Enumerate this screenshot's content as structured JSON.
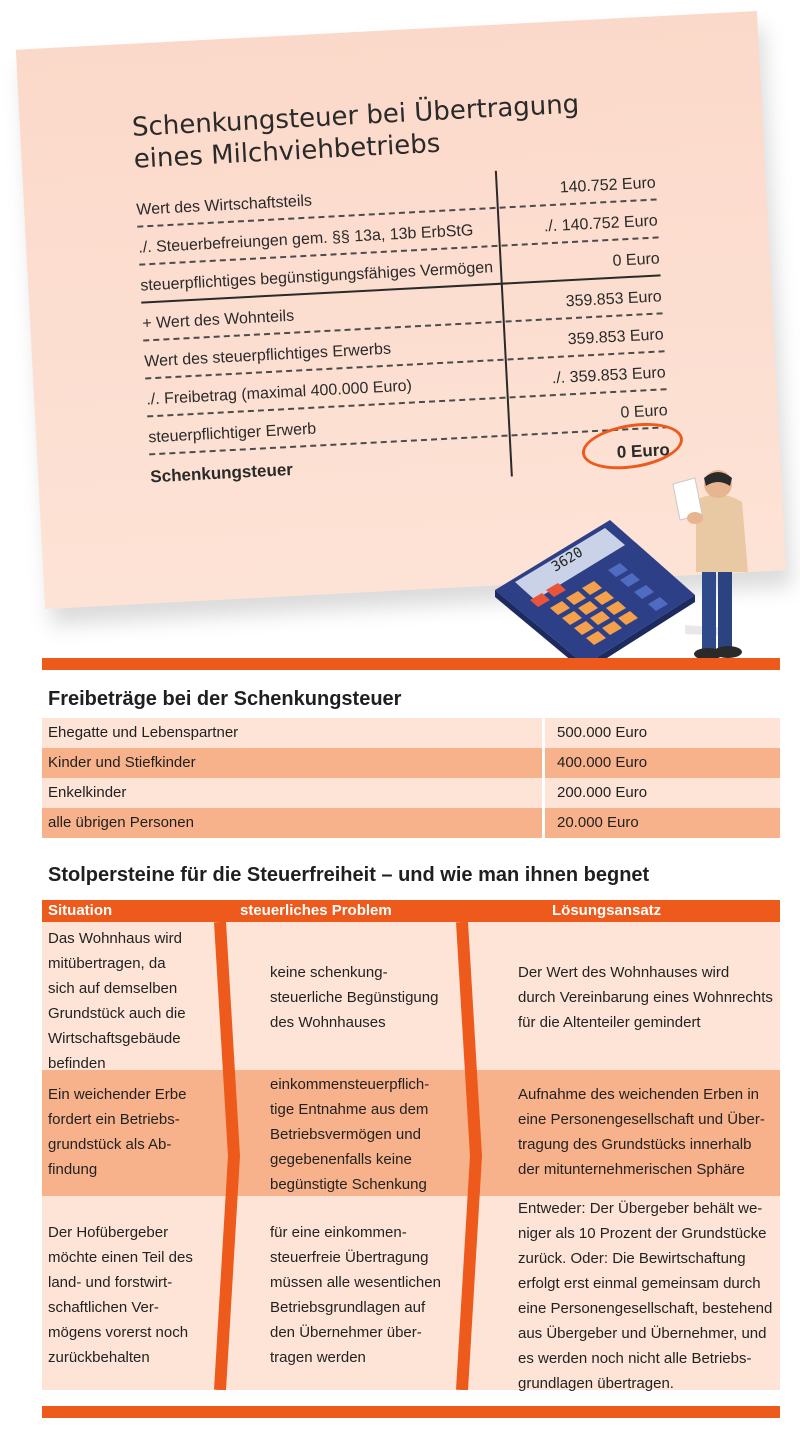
{
  "note": {
    "title_line1": "Schenkungsteuer bei Übertragung",
    "title_line2": "eines Milchviehbetriebs",
    "rows": [
      {
        "label": "Wert des Wirtschaftsteils",
        "value": "140.752 Euro"
      },
      {
        "label": "./. Steuerbefreiungen gem. §§ 13a, 13b ErbStG",
        "value": "./. 140.752 Euro"
      },
      {
        "label": "steuerpflichtiges begünstigungsfähiges Vermögen",
        "value": "0 Euro"
      },
      {
        "label": "+ Wert des Wohnteils",
        "value": "359.853 Euro"
      },
      {
        "label": "Wert des steuerpflichtiges Erwerbs",
        "value": "359.853 Euro"
      },
      {
        "label": "./. Freibetrag (maximal 400.000 Euro)",
        "value": "./. 359.853 Euro"
      },
      {
        "label": "steuerpflichtiger Erwerb",
        "value": "0 Euro"
      },
      {
        "label": "Schenkungsteuer",
        "value": "0 Euro"
      }
    ],
    "calculator_display": "3620"
  },
  "freibetraege": {
    "title": "Freibeträge bei der Schenkungsteuer",
    "rows": [
      {
        "label": "Ehegatte und Lebenspartner",
        "value": "500.000 Euro"
      },
      {
        "label": "Kinder und Stiefkinder",
        "value": "400.000 Euro"
      },
      {
        "label": "Enkelkinder",
        "value": "200.000 Euro"
      },
      {
        "label": "alle übrigen Personen",
        "value": "20.000 Euro"
      }
    ]
  },
  "stolpersteine": {
    "title": "Stolpersteine für die Steuerfreiheit – und wie man ihnen begnet",
    "headers": [
      "Situation",
      "steuerliches Problem",
      "Lösungsansatz"
    ],
    "rows": [
      {
        "situation": [
          "Das Wohnhaus wird",
          "mitübertragen, da",
          "sich auf demselben",
          "Grundstück auch die",
          "Wirtschaftsgebäude",
          "befinden"
        ],
        "problem": [
          "keine schenkung-",
          "steuerliche Begünstigung",
          "des Wohnhauses"
        ],
        "loesung": [
          "Der Wert des Wohnhauses wird",
          "durch Vereinbarung eines Wohnrechts",
          "für die Altenteiler gemindert"
        ]
      },
      {
        "situation": [
          "Ein weichender Erbe",
          "fordert ein Betriebs-",
          "grundstück als Ab-",
          "findung"
        ],
        "problem": [
          "einkommensteuerpflich-",
          "tige Entnahme aus dem",
          "Betriebsvermögen und",
          "gegebenenfalls keine",
          "begünstigte Schenkung"
        ],
        "loesung": [
          "Aufnahme des weichenden Erben in",
          "eine Personengesellschaft und Über-",
          "tragung des Grundstücks innerhalb",
          "der mitunternehmerischen Sphäre"
        ]
      },
      {
        "situation": [
          "Der Hofübergeber",
          "möchte einen Teil des",
          "land- und forstwirt-",
          "schaftlichen Ver-",
          "mögens vorerst noch",
          "zurückbehalten"
        ],
        "problem": [
          "für eine einkommen-",
          "steuerfreie Übertragung",
          "müssen alle wesentlichen",
          "Betriebsgrundlagen auf",
          "den Übernehmer über-",
          "tragen werden"
        ],
        "loesung": [
          "Entweder: Der Übergeber behält we-",
          "niger als 10 Prozent der Grundstücke",
          "zurück. Oder: Die Bewirtschaftung",
          "erfolgt erst einmal gemeinsam durch",
          "eine Personengesellschaft, bestehend",
          "aus Übergeber und Übernehmer, und",
          "es werden noch nicht alle Betriebs-",
          "grundlagen übertragen."
        ]
      }
    ]
  },
  "colors": {
    "accent": "#ee5a1c",
    "light_row": "#fde4d7",
    "dark_row": "#f8b28b",
    "note": "#fbd9ca"
  }
}
